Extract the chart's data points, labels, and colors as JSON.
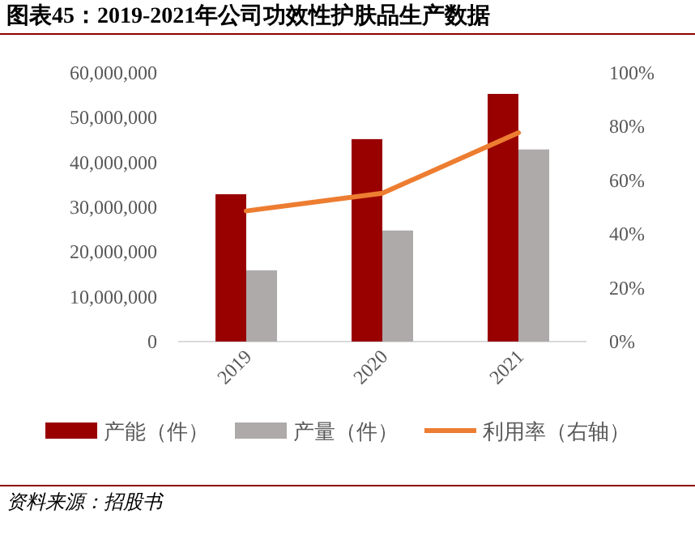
{
  "chart_data": {
    "type": "bar",
    "title": "图表45：2019-2021年公司功效性护肤品生产数据",
    "categories": [
      "2019",
      "2020",
      "2021"
    ],
    "series": [
      {
        "name": "产能（件）",
        "color": "#990000",
        "values": [
          32900000,
          45200000,
          55300000
        ]
      },
      {
        "name": "产量（件）",
        "color": "#aeaaaa",
        "values": [
          15900000,
          24800000,
          42900000
        ]
      },
      {
        "name": "利用率（右轴）",
        "color": "#ed7d31",
        "type": "line",
        "axis": "y2",
        "values": [
          48.6,
          55.2,
          77.7
        ]
      }
    ],
    "ylim": [
      0,
      60000000
    ],
    "yticks": [
      0,
      {
        "value": 10000000,
        "label": "10,000,000"
      },
      {
        "value": 20000000,
        "label": "20,000,000"
      },
      {
        "value": 30000000,
        "label": "30,000,000"
      },
      {
        "value": 40000000,
        "label": "40,000,000"
      },
      {
        "value": 50000000,
        "label": "50,000,000"
      },
      {
        "value": 60000000,
        "label": "60,000,000"
      }
    ],
    "y2lim": [
      0,
      100
    ],
    "y2ticks": [
      {
        "value": 0,
        "label": "0%"
      },
      {
        "value": 20,
        "label": "20%"
      },
      {
        "value": 40,
        "label": "40%"
      },
      {
        "value": 60,
        "label": "60%"
      },
      {
        "value": 80,
        "label": "80%"
      },
      {
        "value": 100,
        "label": "100%"
      }
    ],
    "legend": "bottom",
    "grid": false,
    "annotations": [
      "资料来源：招股书"
    ]
  }
}
